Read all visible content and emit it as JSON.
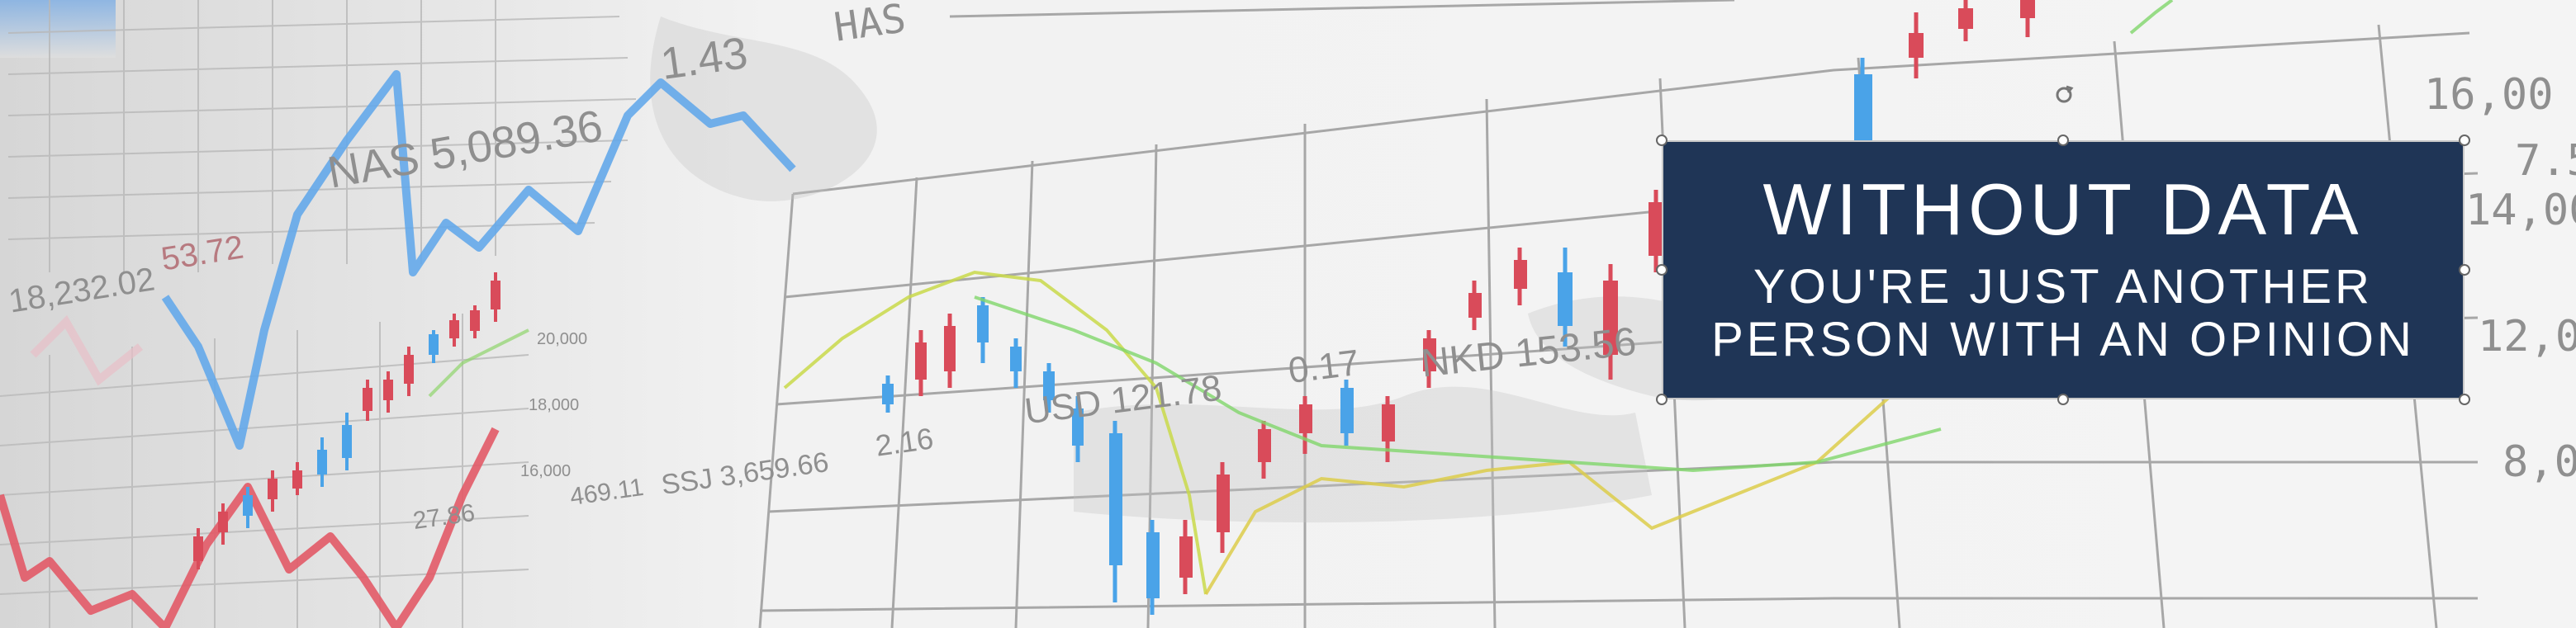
{
  "banner": {
    "quote_line1": "WITHOUT DATA",
    "quote_line2": "YOU'RE JUST ANOTHER",
    "quote_line3": "PERSON WITH AN OPINION"
  },
  "background_labels": {
    "nas_value": "NAS 5,089.36",
    "nas_change": "1.43",
    "dow_value": "18,232.02",
    "dow_change": "53.72",
    "usd_value": "USD 121.78",
    "usd_change": "0.17",
    "nkd_label": "NKD 153.56",
    "left_ssj": "SSJ 3,659.66",
    "left_ssj_change": "2.16",
    "mid_values": [
      "20,000",
      "18,000",
      "16,000"
    ],
    "mid_small_change": "469.11",
    "mid_27": "27.86",
    "top_label": "HAS",
    "right_axis": [
      "16,00",
      "7.5",
      "14,00",
      "12,0",
      "8,0"
    ]
  },
  "colors": {
    "card_background": "#1f3556",
    "up_candle": "#d94b5a",
    "down_candle": "#4aa3e8",
    "grid": "#9a9a9a"
  }
}
